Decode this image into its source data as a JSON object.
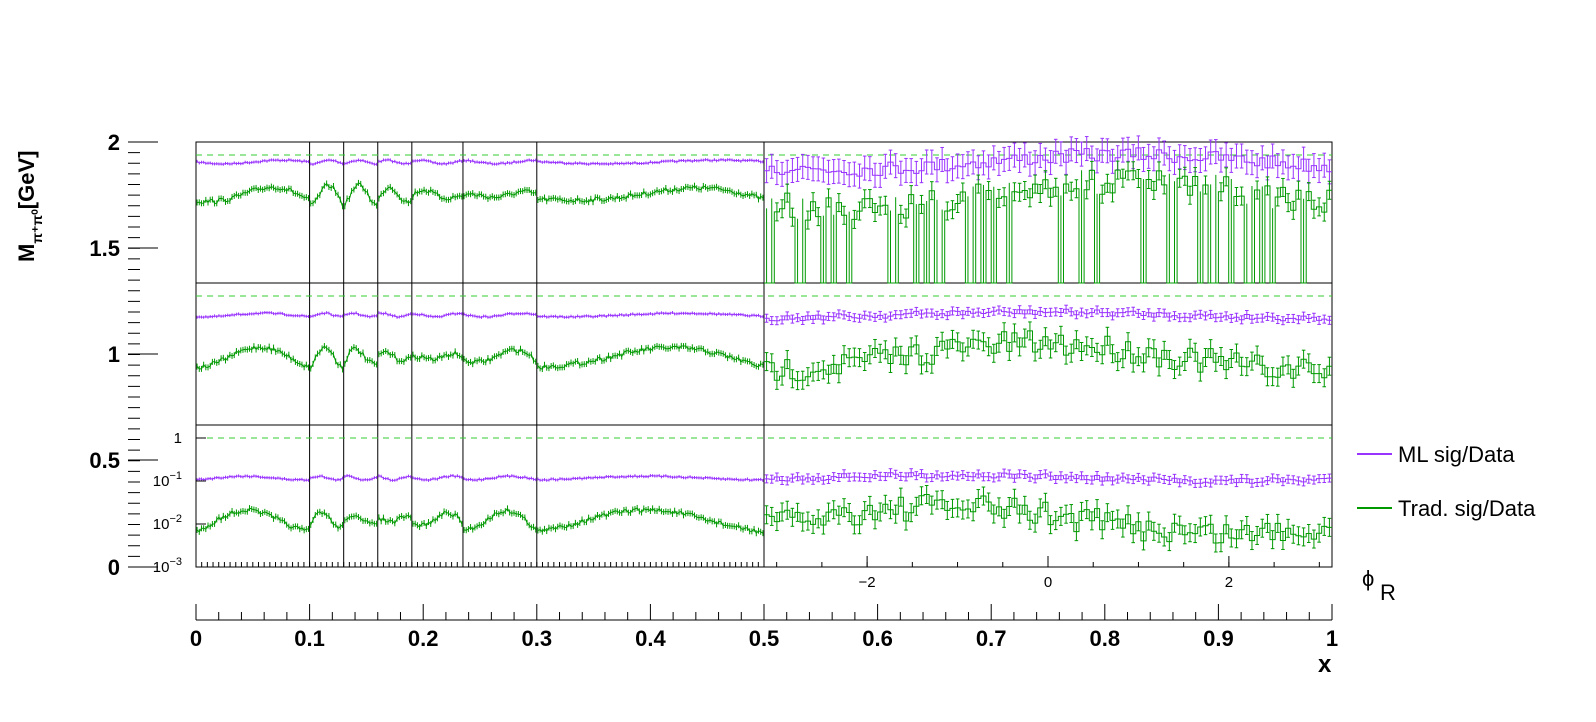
{
  "colors": {
    "ml": "#9933ff",
    "trad": "#009900",
    "ref": "#33cc33",
    "frame": "#000000"
  },
  "chart_data": {
    "type": "line",
    "x_axis": {
      "title": "x",
      "ticks": [
        0,
        0.1,
        0.2,
        0.3,
        0.4,
        0.5,
        0.6,
        0.7,
        0.8,
        0.9,
        1
      ],
      "tick_labels": [
        "0",
        "0.1",
        "0.2",
        "0.3",
        "0.4",
        "0.5",
        "0.6",
        "0.7",
        "0.8",
        "0.9",
        "1"
      ],
      "xlim": [
        0,
        1
      ]
    },
    "y_axis": {
      "title_main": "M",
      "title_sub": "π⁺π⁰",
      "title_unit": "[GeV]",
      "ticks": [
        0,
        0.5,
        1,
        1.5,
        2
      ],
      "tick_labels": [
        "0",
        "0.5",
        "1",
        "1.5",
        "2"
      ],
      "ylim": [
        0,
        2
      ]
    },
    "x_bin_edges": [
      0,
      0.1,
      0.13,
      0.16,
      0.19,
      0.235,
      0.3,
      0.5,
      1
    ],
    "phi_axis": {
      "title": "ϕ",
      "title_sub": "R",
      "ticks": [
        -2,
        0,
        2
      ],
      "tick_labels": [
        "−2",
        "0",
        "2"
      ],
      "xlim": [
        -3.14,
        3.14
      ]
    },
    "log_axis": {
      "ticks": [
        0.001,
        0.01,
        0.1,
        1
      ],
      "tick_labels_base": [
        "10",
        "10",
        "10",
        "1"
      ],
      "tick_labels_exp": [
        "−3",
        "−2",
        "−1",
        ""
      ]
    },
    "legend": {
      "placement": "right",
      "entries": [
        {
          "label": "ML sig/Data",
          "color": "#9933ff"
        },
        {
          "label": "Trad. sig/Data",
          "color": "#009900"
        }
      ]
    },
    "panels": [
      {
        "mass_range": [
          1.3,
          2.0
        ],
        "reference_line": 1,
        "series": [
          {
            "name": "ML sig/Data",
            "mean": 0.9,
            "jitter_low_x": 0.01,
            "jitter_high_x": 0.04
          },
          {
            "name": "Trad. sig/Data",
            "mean": 0.7,
            "jitter_low_x": 0.05,
            "jitter_high_x": 0.2,
            "high_x_dropouts": true
          }
        ]
      },
      {
        "mass_range": [
          0.65,
          1.3
        ],
        "reference_line": 1,
        "series": [
          {
            "name": "ML sig/Data",
            "mean": 0.86,
            "jitter_low_x": 0.01,
            "jitter_high_x": 0.02
          },
          {
            "name": "Trad. sig/Data",
            "mean": 0.65,
            "jitter_low_x": 0.03,
            "jitter_high_x": 0.08
          }
        ]
      },
      {
        "mass_range": [
          0,
          0.65
        ],
        "log_scale": true,
        "reference_line": 1,
        "series": [
          {
            "name": "ML sig/Data",
            "mean": 0.06,
            "jitter_low_x": 0.1,
            "jitter_high_x": 0.12
          },
          {
            "name": "Trad. sig/Data",
            "mean": 0.012,
            "jitter_low_x": 0.15,
            "jitter_high_x": 0.2
          }
        ]
      }
    ]
  }
}
